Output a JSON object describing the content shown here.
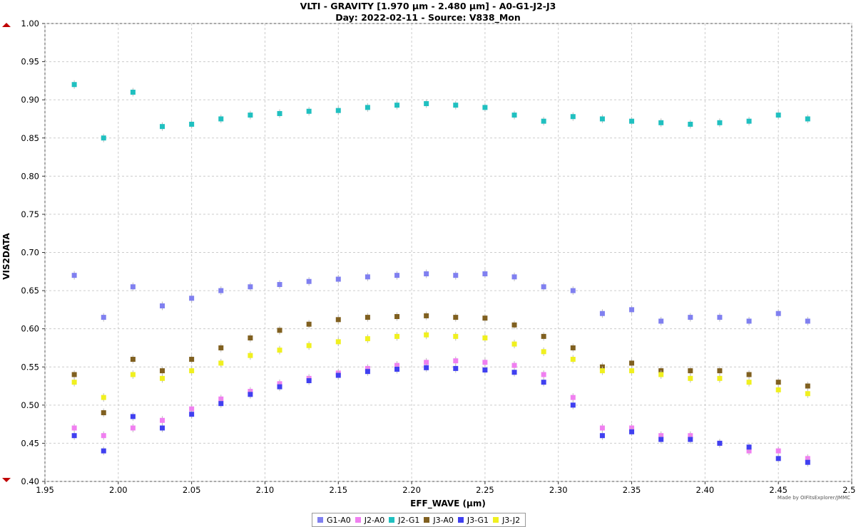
{
  "chart_data": {
    "type": "scatter",
    "title": "VLTI - GRAVITY [1.970 µm - 2.480 µm] - A0-G1-J2-J3",
    "subtitle": "Day: 2022-02-11 - Source: V838_Mon",
    "xlabel": "EFF_WAVE (µm)",
    "ylabel": "VIS2DATA",
    "xlim": [
      1.95,
      2.5
    ],
    "ylim": [
      0.4,
      1.0
    ],
    "x_ticks": [
      "1.95",
      "2.00",
      "2.05",
      "2.10",
      "2.15",
      "2.20",
      "2.25",
      "2.30",
      "2.35",
      "2.40",
      "2.45",
      "2.50"
    ],
    "y_ticks": [
      "0.40",
      "0.45",
      "0.50",
      "0.55",
      "0.60",
      "0.65",
      "0.70",
      "0.75",
      "0.80",
      "0.85",
      "0.90",
      "0.95",
      "1.00"
    ],
    "grid": true,
    "legend_position": "bottom-center",
    "x": [
      1.97,
      1.99,
      2.01,
      2.03,
      2.05,
      2.07,
      2.09,
      2.11,
      2.13,
      2.15,
      2.17,
      2.19,
      2.21,
      2.23,
      2.25,
      2.27,
      2.29,
      2.31,
      2.33,
      2.35,
      2.37,
      2.39,
      2.41,
      2.43,
      2.45,
      2.47
    ],
    "series": [
      {
        "name": "G1-A0",
        "color": "#8080f0",
        "values": [
          0.67,
          0.615,
          0.655,
          0.63,
          0.64,
          0.65,
          0.655,
          0.658,
          0.662,
          0.665,
          0.668,
          0.67,
          0.672,
          0.67,
          0.672,
          0.668,
          0.655,
          0.65,
          0.62,
          0.625,
          0.61,
          0.615,
          0.615,
          0.61,
          0.62,
          0.61
        ]
      },
      {
        "name": "J2-A0",
        "color": "#f080f0",
        "values": [
          0.47,
          0.46,
          0.47,
          0.48,
          0.495,
          0.508,
          0.518,
          0.528,
          0.535,
          0.542,
          0.548,
          0.552,
          0.556,
          0.558,
          0.556,
          0.552,
          0.54,
          0.51,
          0.47,
          0.47,
          0.46,
          0.46,
          0.45,
          0.44,
          0.44,
          0.43
        ]
      },
      {
        "name": "J2-G1",
        "color": "#20c0c0",
        "values": [
          0.92,
          0.85,
          0.91,
          0.865,
          0.868,
          0.875,
          0.88,
          0.882,
          0.885,
          0.886,
          0.89,
          0.893,
          0.895,
          0.893,
          0.89,
          0.88,
          0.872,
          0.878,
          0.875,
          0.872,
          0.87,
          0.868,
          0.87,
          0.872,
          0.88,
          0.875
        ]
      },
      {
        "name": "J3-A0",
        "color": "#806020",
        "values": [
          0.54,
          0.49,
          0.56,
          0.545,
          0.56,
          0.575,
          0.588,
          0.598,
          0.606,
          0.612,
          0.615,
          0.616,
          0.617,
          0.615,
          0.614,
          0.605,
          0.59,
          0.575,
          0.55,
          0.555,
          0.545,
          0.545,
          0.545,
          0.54,
          0.53,
          0.525
        ]
      },
      {
        "name": "J3-G1",
        "color": "#4040f0",
        "values": [
          0.46,
          0.44,
          0.485,
          0.47,
          0.488,
          0.502,
          0.514,
          0.524,
          0.532,
          0.539,
          0.544,
          0.547,
          0.549,
          0.548,
          0.546,
          0.543,
          0.53,
          0.5,
          0.46,
          0.465,
          0.455,
          0.455,
          0.45,
          0.445,
          0.43,
          0.425
        ]
      },
      {
        "name": "J3-J2",
        "color": "#f0f020",
        "values": [
          0.53,
          0.51,
          0.54,
          0.535,
          0.545,
          0.555,
          0.565,
          0.572,
          0.578,
          0.583,
          0.587,
          0.59,
          0.592,
          0.59,
          0.588,
          0.58,
          0.57,
          0.56,
          0.545,
          0.545,
          0.54,
          0.535,
          0.535,
          0.53,
          0.52,
          0.515
        ]
      }
    ]
  },
  "credit": "Made by OIFitsExplorer/JMMC"
}
